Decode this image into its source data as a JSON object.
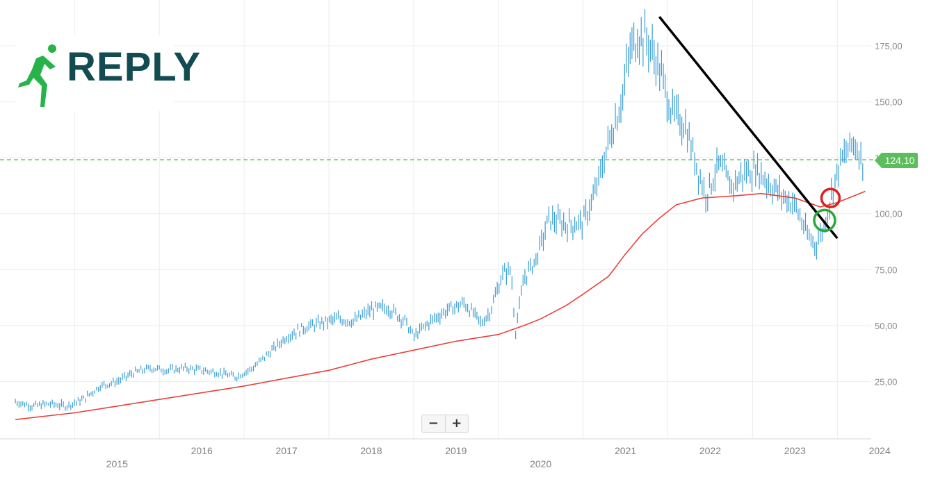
{
  "chart_data": {
    "type": "line",
    "title": "",
    "xlabel": "",
    "ylabel": "",
    "ylim": [
      0,
      190
    ],
    "yticks": [
      "25,00",
      "50,00",
      "75,00",
      "100,00",
      "125,00",
      "150,00",
      "175,00"
    ],
    "ytick_values": [
      25,
      50,
      75,
      100,
      125,
      150,
      175
    ],
    "xticks": [
      {
        "label": "2015",
        "year": 2015
      },
      {
        "label": "2016",
        "year": 2016
      },
      {
        "label": "2017",
        "year": 2017
      },
      {
        "label": "2018",
        "year": 2018
      },
      {
        "label": "2019",
        "year": 2019
      },
      {
        "label": "2020",
        "year": 2020
      },
      {
        "label": "2021",
        "year": 2021
      },
      {
        "label": "2022",
        "year": 2022
      },
      {
        "label": "2023",
        "year": 2023
      },
      {
        "label": "2024",
        "year": 2024
      }
    ],
    "grid": true,
    "last_price": 124.1,
    "last_price_label": "124,10",
    "colors": {
      "price": "#3a9fd6",
      "moving_average": "#e8413a",
      "trendline": "#000000",
      "last_price_line": "#5cbd5c",
      "red_circle": "#dd2020",
      "green_circle": "#2aa83a",
      "logo_text": "#124b51",
      "logo_figure": "#28b34a"
    },
    "series": [
      {
        "type": "ohlc",
        "x": [
          2014.3,
          2014.5,
          2014.7,
          2014.9,
          2015.1,
          2015.3,
          2015.5,
          2015.7,
          2015.9,
          2016.1,
          2016.3,
          2016.5,
          2016.7,
          2016.9,
          2017.1,
          2017.3,
          2017.5,
          2017.7,
          2017.9,
          2018.1,
          2018.3,
          2018.5,
          2018.7,
          2018.9,
          2019.0,
          2019.2,
          2019.4,
          2019.6,
          2019.8,
          2019.9,
          2020.05,
          2020.15,
          2020.2,
          2020.3,
          2020.45,
          2020.6,
          2020.8,
          2021.0,
          2021.15,
          2021.3,
          2021.45,
          2021.55,
          2021.65,
          2021.75,
          2021.9,
          2022.05,
          2022.2,
          2022.35,
          2022.45,
          2022.6,
          2022.75,
          2022.9,
          2023.05,
          2023.2,
          2023.35,
          2023.5,
          2023.65,
          2023.75,
          2023.85,
          2023.95,
          2024.05,
          2024.2,
          2024.3
        ],
        "values": [
          16,
          14,
          15,
          14,
          17,
          23,
          25,
          29,
          31,
          30,
          31,
          30,
          29,
          27,
          31,
          38,
          45,
          49,
          51,
          53,
          52,
          57,
          58,
          52,
          45,
          52,
          57,
          60,
          51,
          56,
          73,
          75,
          47,
          71,
          80,
          98,
          95,
          96,
          110,
          132,
          150,
          172,
          180,
          178,
          165,
          145,
          140,
          120,
          108,
          122,
          112,
          118,
          120,
          113,
          108,
          104,
          90,
          86,
          95,
          112,
          124,
          132,
          124
        ]
      },
      {
        "type": "line",
        "x": [
          2014.3,
          2015,
          2016,
          2017,
          2018,
          2018.5,
          2019,
          2019.5,
          2020,
          2020.3,
          2020.5,
          2020.8,
          2021.0,
          2021.3,
          2021.5,
          2021.7,
          2021.9,
          2022.1,
          2022.4,
          2022.8,
          2023.1,
          2023.5,
          2023.8,
          2024.0,
          2024.33
        ],
        "values": [
          8,
          11,
          17,
          23,
          30,
          35,
          39,
          43,
          46,
          50,
          53,
          59,
          64,
          72,
          82,
          91,
          98,
          104,
          107,
          108,
          109,
          107,
          103,
          105,
          110
        ]
      }
    ]
  },
  "logo": {
    "text": "REPLY"
  },
  "zoom": {
    "minus": "−",
    "plus": "+"
  }
}
